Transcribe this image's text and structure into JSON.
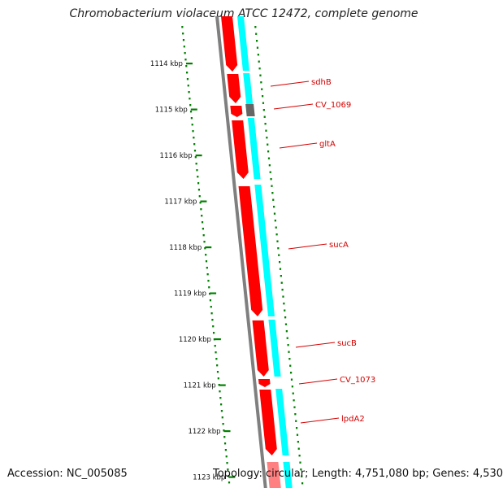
{
  "title": "Chromobacterium violaceum ATCC 12472, complete genome",
  "accession": "Accession: NC_005085",
  "summary": "Topology: circular; Length: 4,751,080 bp; Genes: 4,530",
  "colors": {
    "cds": "#ff0000",
    "cds_light": "#ff8080",
    "gene_track": "#00ffff",
    "backbone": "#7f7f7f",
    "highlight_gene": "#666666",
    "ruler": "#008000",
    "gc_dots": "#008000",
    "label": "#d40000",
    "label_line": "#d40000"
  },
  "ruler": {
    "unit": "kbp",
    "ticks": [
      "1114 kbp",
      "1115 kbp",
      "1116 kbp",
      "1117 kbp",
      "1118 kbp",
      "1119 kbp",
      "1120 kbp",
      "1121 kbp",
      "1122 kbp",
      "1123 kbp"
    ]
  },
  "genes": [
    {
      "label": "sdhB"
    },
    {
      "label": "CV_1069"
    },
    {
      "label": "gltA"
    },
    {
      "label": "sucA"
    },
    {
      "label": "sucB"
    },
    {
      "label": "CV_1073"
    },
    {
      "label": "lpdA2"
    }
  ]
}
